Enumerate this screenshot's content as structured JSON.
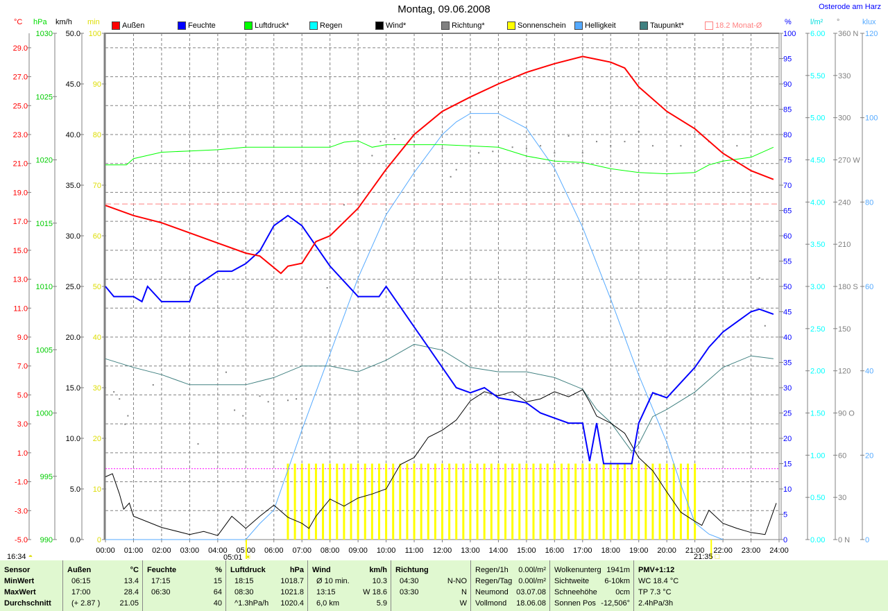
{
  "header": {
    "title": "Montag, 09.06.2008",
    "station": "Osterode am Harz"
  },
  "legend": [
    {
      "label": "Außen",
      "color": "#ff0000"
    },
    {
      "label": "Feuchte",
      "color": "#0000ff"
    },
    {
      "label": "Luftdruck*",
      "color": "#00ff00"
    },
    {
      "label": "Regen",
      "color": "#00ffff"
    },
    {
      "label": "Wind*",
      "color": "#000000"
    },
    {
      "label": "Richtung*",
      "color": "#808080"
    },
    {
      "label": "Sonnenschein",
      "color": "#ffff00"
    },
    {
      "label": "Helligkeit",
      "color": "#55aaff"
    },
    {
      "label": "Taupunkt*",
      "color": "#408080"
    },
    {
      "label": "18.2 Monat-Ø",
      "color": "#ff8080"
    }
  ],
  "units": {
    "temp": "°C",
    "pressure": "hPa",
    "wind": "km/h",
    "sun": "min",
    "humidity": "%",
    "rain": "l/m²",
    "direction": "°",
    "light": "klux"
  },
  "chart_data": {
    "type": "line",
    "title": "Montag, 09.06.2008",
    "xlabel": "",
    "x_ticks": [
      "00:00",
      "01:00",
      "02:00",
      "03:00",
      "04:00",
      "05:00",
      "06:00",
      "07:00",
      "08:00",
      "09:00",
      "10:00",
      "11:00",
      "12:00",
      "13:00",
      "14:00",
      "15:00",
      "16:00",
      "17:00",
      "18:00",
      "19:00",
      "20:00",
      "21:00",
      "22:00",
      "23:00",
      "24:00"
    ],
    "xlim": [
      0,
      24
    ],
    "grid": true,
    "legend_position": "top",
    "axes": {
      "temp": {
        "range": [
          -5,
          30
        ],
        "ticks": [
          "29.0",
          "27.0",
          "25.0",
          "23.0",
          "21.0",
          "19.0",
          "17.0",
          "15.0",
          "13.0",
          "11.0",
          "9.0",
          "7.0",
          "5.0",
          "3.0",
          "1.0",
          "-1.0",
          "-3.0",
          "-5.0"
        ],
        "color": "#ff0000"
      },
      "pressure": {
        "range": [
          990,
          1030
        ],
        "ticks": [
          "1030",
          "1025",
          "1020",
          "1015",
          "1010",
          "1005",
          "1000",
          "995",
          "990"
        ],
        "color": "#00cc00"
      },
      "wind": {
        "range": [
          0,
          50
        ],
        "ticks": [
          "50.0",
          "45.0",
          "40.0",
          "35.0",
          "30.0",
          "25.0",
          "20.0",
          "15.0",
          "10.0",
          "5.0",
          "0.0"
        ],
        "color": "#000000"
      },
      "sun": {
        "range": [
          0,
          100
        ],
        "ticks": [
          "100",
          "90",
          "80",
          "70",
          "60",
          "50",
          "40",
          "30",
          "20",
          "10",
          "0"
        ],
        "color": "#dddd00"
      },
      "humidity": {
        "range": [
          0,
          100
        ],
        "ticks": [
          "100",
          "95",
          "90",
          "85",
          "80",
          "75",
          "70",
          "65",
          "60",
          "55",
          "50",
          "45",
          "40",
          "35",
          "30",
          "25",
          "20",
          "15",
          "10",
          "5",
          "0"
        ],
        "color": "#0000ff"
      },
      "rain": {
        "range": [
          0,
          6
        ],
        "ticks": [
          "6.00",
          "5.50",
          "5.00",
          "4.50",
          "4.00",
          "3.50",
          "3.00",
          "2.50",
          "2.00",
          "1.50",
          "1.00",
          "0.50",
          "0.00"
        ],
        "color": "#00ffff"
      },
      "direction": {
        "range": [
          0,
          360
        ],
        "ticks": [
          "360 N",
          "330",
          "300",
          "270 W",
          "240",
          "210",
          "180 S",
          "150",
          "120",
          "90  O",
          "60",
          "30",
          "0   N"
        ],
        "color": "#808080"
      },
      "light": {
        "range": [
          0,
          120
        ],
        "ticks": [
          "120",
          "100",
          "80",
          "60",
          "40",
          "20",
          "0"
        ],
        "color": "#55aaff"
      }
    },
    "reference_lines": [
      {
        "name": "Monat-Ø",
        "axis": "temp",
        "value": 18.2,
        "color": "#ff8080"
      },
      {
        "name": "sunshine-ref",
        "axis": "sun",
        "value": 14,
        "color": "#ff00ff"
      }
    ],
    "series": [
      {
        "name": "Außen",
        "axis": "temp",
        "color": "#ff0000",
        "width": 2,
        "x": [
          0,
          1,
          2,
          3,
          4,
          5,
          5.5,
          6,
          6.25,
          6.5,
          7,
          7.5,
          8,
          9,
          10,
          11,
          12,
          13,
          14,
          15,
          16,
          17,
          17.5,
          18,
          18.5,
          19,
          20,
          21,
          22,
          23,
          23.8
        ],
        "y": [
          18.1,
          17.4,
          16.9,
          16.2,
          15.5,
          14.8,
          14.6,
          13.8,
          13.4,
          13.9,
          14.1,
          15.6,
          16.0,
          17.9,
          20.6,
          23.0,
          24.6,
          25.6,
          26.5,
          27.3,
          27.9,
          28.4,
          28.2,
          28.0,
          27.6,
          26.3,
          24.6,
          23.4,
          21.7,
          20.5,
          19.9
        ]
      },
      {
        "name": "Feuchte",
        "axis": "humidity",
        "color": "#0000ff",
        "width": 2,
        "x": [
          0,
          0.3,
          1,
          1.3,
          1.5,
          2,
          3,
          3.2,
          4,
          4.5,
          5,
          5.5,
          6,
          6.5,
          7,
          7.5,
          8,
          8.5,
          9,
          9.75,
          10,
          10.5,
          11,
          11.5,
          12,
          12.5,
          13,
          13.5,
          14,
          15,
          15.5,
          16,
          16.5,
          17,
          17.25,
          17.5,
          17.75,
          18.75,
          19,
          19.5,
          20,
          20.5,
          21,
          21.5,
          22,
          22.5,
          23,
          23.3,
          23.8
        ],
        "y": [
          50,
          48,
          48,
          47,
          50,
          47,
          47,
          50,
          53,
          53,
          54.5,
          57,
          62,
          64,
          62,
          58,
          54,
          51,
          48,
          48,
          50,
          46,
          42,
          38,
          34,
          30,
          29,
          30,
          28,
          27,
          25,
          24,
          23,
          23,
          15.5,
          23,
          15,
          15,
          23,
          29,
          28,
          31,
          34,
          38,
          41,
          43,
          45,
          45.5,
          44.5
        ]
      },
      {
        "name": "Luftdruck*",
        "axis": "pressure",
        "color": "#00ff00",
        "width": 1,
        "x": [
          0,
          0.75,
          1,
          2,
          3,
          4,
          5,
          6,
          7,
          8,
          8.5,
          9,
          9.5,
          10,
          11,
          12,
          13,
          14,
          15,
          16,
          17,
          18,
          19,
          20,
          21,
          21.5,
          22,
          23,
          23.8
        ],
        "y": [
          1019.6,
          1019.6,
          1020.1,
          1020.6,
          1020.7,
          1020.8,
          1021.0,
          1021.0,
          1021.0,
          1021.0,
          1021.4,
          1021.5,
          1021.0,
          1021.2,
          1021.2,
          1021.2,
          1021.1,
          1021.0,
          1020.3,
          1019.9,
          1019.8,
          1019.3,
          1019.0,
          1018.9,
          1019.0,
          1019.6,
          1019.9,
          1020.2,
          1021.0
        ]
      },
      {
        "name": "Wind*",
        "axis": "wind",
        "color": "#000000",
        "width": 1,
        "x": [
          0,
          0.25,
          0.5,
          0.65,
          0.85,
          1,
          2,
          3,
          3.5,
          4,
          4.5,
          5,
          5.5,
          6,
          6.5,
          7,
          7.25,
          7.5,
          8,
          8.5,
          9,
          9.5,
          10,
          10.5,
          11,
          11.5,
          12,
          12.5,
          13,
          13.5,
          14,
          14.5,
          15,
          15.5,
          16,
          16.5,
          17,
          17.25,
          17.5,
          18,
          18.5,
          19,
          19.5,
          20,
          20.5,
          21,
          21.25,
          21.5,
          22,
          22.5,
          23,
          23.5,
          23.9
        ],
        "y": [
          6.2,
          6.5,
          4.5,
          3.0,
          3.6,
          2.3,
          1.2,
          0.5,
          0.8,
          0.4,
          2.3,
          1.1,
          2.3,
          3.4,
          2.2,
          1.6,
          1.1,
          2.3,
          4.0,
          3.3,
          4.1,
          4.5,
          5.0,
          7.4,
          8.1,
          10.1,
          10.8,
          11.8,
          13.7,
          14.6,
          14.2,
          14.6,
          13.6,
          13.9,
          14.6,
          14.1,
          14.8,
          13.6,
          12.2,
          11.5,
          10.5,
          8.1,
          6.8,
          4.7,
          2.7,
          1.8,
          1.4,
          2.9,
          1.6,
          1.1,
          0.7,
          0.5,
          3.6
        ]
      },
      {
        "name": "Taupunkt*",
        "axis": "temp",
        "color": "#408080",
        "width": 1,
        "x": [
          0,
          1,
          2,
          3,
          4,
          5,
          6,
          7,
          8,
          9,
          10,
          11,
          12,
          13,
          14,
          15,
          16,
          17,
          17.5,
          18,
          18.75,
          19,
          19.5,
          20,
          21,
          22,
          23,
          23.8
        ],
        "y": [
          7.5,
          6.9,
          6.4,
          5.7,
          5.7,
          5.7,
          6.2,
          7.0,
          7.0,
          6.6,
          7.4,
          8.5,
          8.1,
          6.9,
          6.6,
          6.6,
          6.2,
          5.4,
          4.0,
          3.1,
          1.1,
          1.6,
          3.5,
          4.0,
          5.2,
          6.9,
          7.7,
          7.5
        ]
      },
      {
        "name": "Helligkeit",
        "axis": "light",
        "color": "#55aaff",
        "width": 1,
        "x": [
          0,
          5,
          5.5,
          6,
          7,
          8,
          9,
          10,
          11,
          12,
          12.5,
          13,
          13.5,
          14,
          15,
          16,
          17,
          18,
          19,
          20,
          20.5,
          21,
          21.5,
          22
        ],
        "y": [
          0,
          0,
          3.8,
          7,
          26,
          44,
          62,
          77,
          87,
          96,
          99,
          101,
          101,
          101,
          97.5,
          88,
          74,
          57,
          39,
          23,
          13,
          4,
          1.3,
          0
        ]
      }
    ],
    "sunshine": {
      "axis": "sun",
      "color": "#ffff00",
      "interval_minutes": 15,
      "start": "06:30",
      "end": "21:00",
      "value_per_interval": 15
    },
    "direction": {
      "axis": "direction",
      "color": "#808080",
      "x": [
        0.3,
        0.5,
        0.7,
        0.8,
        1.7,
        3.3,
        4.3,
        4.6,
        4.9,
        5.5,
        5.8,
        6.5,
        6.8,
        7.9,
        8.0,
        8.5,
        9.0,
        9.5,
        9.8,
        10.3,
        11.0,
        12.0,
        12.3,
        12.5,
        13.3,
        13.8,
        14.5,
        15.0,
        15.5,
        16.0,
        16.5,
        17.0,
        17.5,
        18.0,
        18.5,
        19.0,
        19.5,
        20.5,
        21.5,
        22.5,
        23.3,
        23.5
      ],
      "y": [
        105,
        100,
        82,
        88,
        110,
        68,
        119,
        92,
        88,
        102,
        98,
        99,
        100,
        179,
        216,
        238,
        246,
        273,
        283,
        285,
        283,
        278,
        258,
        263,
        275,
        276,
        279,
        278,
        280,
        275,
        287,
        275,
        283,
        280,
        283,
        290,
        280,
        280,
        283,
        280,
        186,
        152
      ]
    }
  },
  "astro": {
    "moon_time": "16:34",
    "sunrise": "05:01",
    "sunset": "21:35"
  },
  "table": {
    "row_labels": [
      "Sensor",
      "MinWert",
      "MaxWert",
      "Durchschnitt"
    ],
    "aussen": {
      "head": "Außen",
      "unit": "°C",
      "rows": [
        [
          "06:15",
          "13.4"
        ],
        [
          "17:00",
          "28.4"
        ],
        [
          "(+ 2.87 )",
          "21.05"
        ]
      ]
    },
    "feuchte": {
      "head": "Feuchte",
      "unit": "%",
      "rows": [
        [
          "17:15",
          "15"
        ],
        [
          "06:30",
          "64"
        ],
        [
          "",
          "40"
        ]
      ]
    },
    "luftdruck": {
      "head": "Luftdruck",
      "unit": "hPa",
      "rows": [
        [
          "18:15",
          "1018.7"
        ],
        [
          "08:30",
          "1021.8"
        ],
        [
          "^1.3hPa/h",
          "1020.4"
        ]
      ]
    },
    "wind": {
      "head": "Wind",
      "unit": "km/h",
      "rows": [
        [
          "Ø 10 min.",
          "10.3"
        ],
        [
          "13:15",
          "W 18.6"
        ],
        [
          "6,0 km",
          "5.9"
        ]
      ]
    },
    "richtung": {
      "head": "Richtung",
      "unit": "",
      "rows": [
        [
          "04:30",
          "N-NO"
        ],
        [
          "03:30",
          "N"
        ],
        [
          "",
          "W"
        ]
      ]
    },
    "regen": [
      [
        "Regen/1h",
        "0.00l/m²"
      ],
      [
        "Regen/Tag",
        "0.00l/m²"
      ],
      [
        "Neumond",
        "03.07.08"
      ],
      [
        "Vollmond",
        "18.06.08"
      ]
    ],
    "wolken": [
      [
        "Wolkenunterg",
        "1941m"
      ],
      [
        "Sichtweite",
        "6-10km"
      ],
      [
        "Schneehöhe",
        "0cm"
      ],
      [
        "Sonnen Pos",
        "-12,506°"
      ]
    ],
    "pmv": [
      "PMV+1:12",
      "WC 18.4 °C",
      "TP 7.3 °C",
      "2.4hPa/3h"
    ]
  }
}
